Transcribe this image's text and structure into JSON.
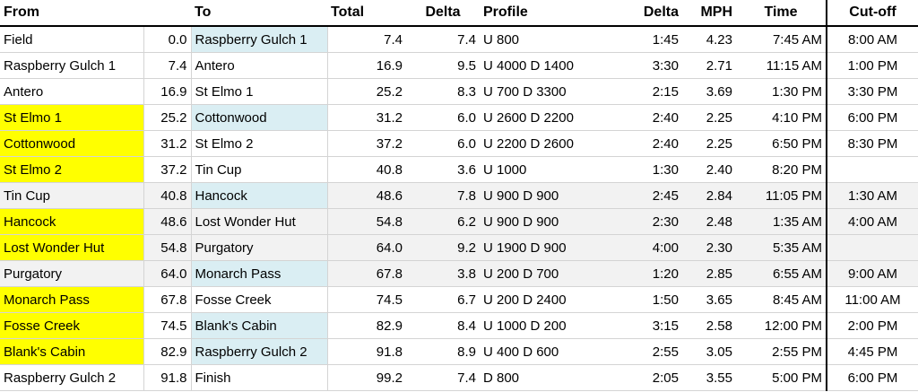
{
  "headers": {
    "from": "From",
    "to": "To",
    "total": "Total",
    "delta": "Delta",
    "profile": "Profile",
    "delta_time": "Delta",
    "mph": "MPH",
    "time": "Time",
    "cutoff": "Cut-off"
  },
  "colors": {
    "yellow": "#ffff00",
    "light_blue": "#daeef3",
    "gray": "#f2f2f2"
  },
  "rows": [
    {
      "from": "Field",
      "start": "0.0",
      "to": "Raspberry Gulch 1",
      "total": "7.4",
      "delta": "7.4",
      "profile": "U 800",
      "delta_time": "1:45",
      "mph": "4.23",
      "time": "7:45 AM",
      "cutoff": "8:00 AM",
      "from_hl": "",
      "to_hl": "blue",
      "gray": false
    },
    {
      "from": "Raspberry Gulch 1",
      "start": "7.4",
      "to": "Antero",
      "total": "16.9",
      "delta": "9.5",
      "profile": "U 4000  D 1400",
      "delta_time": "3:30",
      "mph": "2.71",
      "time": "11:15 AM",
      "cutoff": "1:00 PM",
      "from_hl": "",
      "to_hl": "",
      "gray": false
    },
    {
      "from": "Antero",
      "start": "16.9",
      "to": "St Elmo 1",
      "total": "25.2",
      "delta": "8.3",
      "profile": "U 700  D 3300",
      "delta_time": "2:15",
      "mph": "3.69",
      "time": "1:30 PM",
      "cutoff": "3:30 PM",
      "from_hl": "",
      "to_hl": "",
      "gray": false
    },
    {
      "from": "St Elmo 1",
      "start": "25.2",
      "to": "Cottonwood",
      "total": "31.2",
      "delta": "6.0",
      "profile": "U 2600  D 2200",
      "delta_time": "2:40",
      "mph": "2.25",
      "time": "4:10 PM",
      "cutoff": "6:00 PM",
      "from_hl": "yellow",
      "to_hl": "blue",
      "gray": false
    },
    {
      "from": "Cottonwood",
      "start": "31.2",
      "to": "St Elmo 2",
      "total": "37.2",
      "delta": "6.0",
      "profile": "U 2200  D 2600",
      "delta_time": "2:40",
      "mph": "2.25",
      "time": "6:50 PM",
      "cutoff": "8:30 PM",
      "from_hl": "yellow",
      "to_hl": "",
      "gray": false
    },
    {
      "from": "St Elmo 2",
      "start": "37.2",
      "to": "Tin Cup",
      "total": "40.8",
      "delta": "3.6",
      "profile": "U 1000",
      "delta_time": "1:30",
      "mph": "2.40",
      "time": "8:20 PM",
      "cutoff": "",
      "from_hl": "yellow",
      "to_hl": "",
      "gray": false
    },
    {
      "from": "Tin Cup",
      "start": "40.8",
      "to": "Hancock",
      "total": "48.6",
      "delta": "7.8",
      "profile": "U 900  D 900",
      "delta_time": "2:45",
      "mph": "2.84",
      "time": "11:05 PM",
      "cutoff": "1:30 AM",
      "from_hl": "",
      "to_hl": "blue",
      "gray": true
    },
    {
      "from": "Hancock",
      "start": "48.6",
      "to": "Lost Wonder Hut",
      "total": "54.8",
      "delta": "6.2",
      "profile": "U 900  D 900",
      "delta_time": "2:30",
      "mph": "2.48",
      "time": "1:35 AM",
      "cutoff": "4:00 AM",
      "from_hl": "yellow",
      "to_hl": "",
      "gray": true
    },
    {
      "from": "Lost Wonder Hut",
      "start": "54.8",
      "to": "Purgatory",
      "total": "64.0",
      "delta": "9.2",
      "profile": "U 1900  D 900",
      "delta_time": "4:00",
      "mph": "2.30",
      "time": "5:35 AM",
      "cutoff": "",
      "from_hl": "yellow",
      "to_hl": "",
      "gray": true
    },
    {
      "from": "Purgatory",
      "start": "64.0",
      "to": "Monarch Pass",
      "total": "67.8",
      "delta": "3.8",
      "profile": "U 200  D 700",
      "delta_time": "1:20",
      "mph": "2.85",
      "time": "6:55 AM",
      "cutoff": "9:00 AM",
      "from_hl": "",
      "to_hl": "blue",
      "gray": true
    },
    {
      "from": "Monarch Pass",
      "start": "67.8",
      "to": "Fosse Creek",
      "total": "74.5",
      "delta": "6.7",
      "profile": "U 200  D 2400",
      "delta_time": "1:50",
      "mph": "3.65",
      "time": "8:45 AM",
      "cutoff": "11:00 AM",
      "from_hl": "yellow",
      "to_hl": "",
      "gray": false
    },
    {
      "from": "Fosse Creek",
      "start": "74.5",
      "to": "Blank's Cabin",
      "total": "82.9",
      "delta": "8.4",
      "profile": "U 1000  D 200",
      "delta_time": "3:15",
      "mph": "2.58",
      "time": "12:00 PM",
      "cutoff": "2:00 PM",
      "from_hl": "yellow",
      "to_hl": "blue",
      "gray": false
    },
    {
      "from": "Blank's Cabin",
      "start": "82.9",
      "to": "Raspberry Gulch 2",
      "total": "91.8",
      "delta": "8.9",
      "profile": "U 400  D 600",
      "delta_time": "2:55",
      "mph": "3.05",
      "time": "2:55 PM",
      "cutoff": "4:45 PM",
      "from_hl": "yellow",
      "to_hl": "blue",
      "gray": false
    },
    {
      "from": "Raspberry Gulch 2",
      "start": "91.8",
      "to": "Finish",
      "total": "99.2",
      "delta": "7.4",
      "profile": "D 800",
      "delta_time": "2:05",
      "mph": "3.55",
      "time": "5:00 PM",
      "cutoff": "6:00 PM",
      "from_hl": "",
      "to_hl": "",
      "gray": false
    }
  ]
}
